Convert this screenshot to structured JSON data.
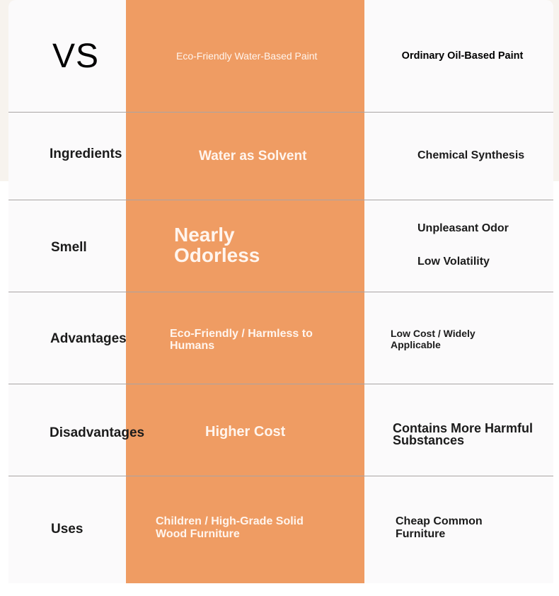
{
  "header": {
    "vs": "VS",
    "col_water": "Eco-Friendly Water-Based Paint",
    "col_oil": "Ordinary Oil-Based Paint"
  },
  "rows": [
    {
      "label": "Ingredients",
      "water": [
        "Water as Solvent"
      ],
      "oil": [
        "Chemical Synthesis"
      ]
    },
    {
      "label": "Smell",
      "water": [
        "Nearly",
        "Odorless"
      ],
      "oil": [
        "Unpleasant Odor",
        "Low Volatility"
      ]
    },
    {
      "label": "Advantages",
      "water": [
        "Eco-Friendly / Harmless to",
        "Humans"
      ],
      "oil": [
        "Low Cost / Widely",
        "Applicable"
      ]
    },
    {
      "label": "Disadvantages",
      "water": [
        "Higher Cost"
      ],
      "oil": [
        "Contains More Harmful",
        "Substances"
      ]
    },
    {
      "label": "Uses",
      "water": [
        "Children / High-Grade Solid",
        "Wood Furniture"
      ],
      "oil": [
        "Cheap Common",
        "Furniture"
      ]
    }
  ],
  "colors": {
    "accent": "#ef9c63",
    "divider": "#a9a4a4",
    "card": "#fbfafb",
    "page_bg": "#f7f3ee"
  }
}
